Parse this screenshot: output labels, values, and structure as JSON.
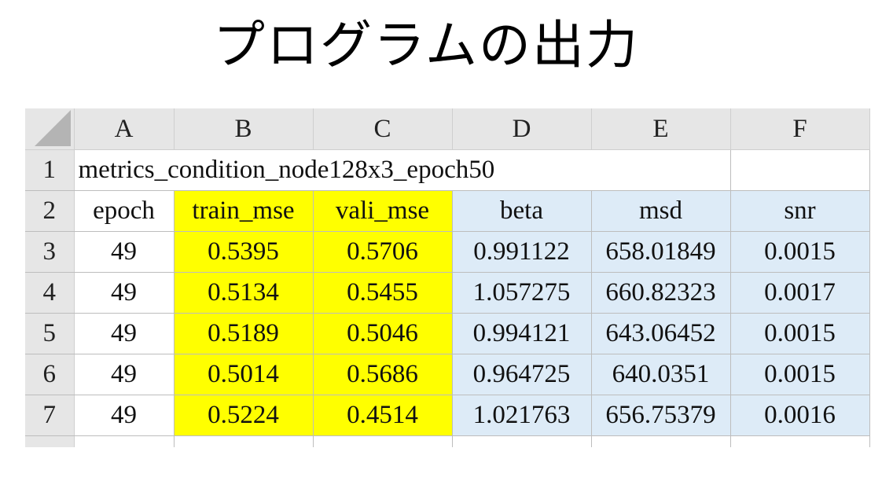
{
  "title": "プログラムの出力",
  "columns": [
    "A",
    "B",
    "C",
    "D",
    "E",
    "F"
  ],
  "row_numbers": [
    "1",
    "2",
    "3",
    "4",
    "5",
    "6",
    "7"
  ],
  "sheet_title": "metrics_condition_node128x3_epoch50",
  "headers": [
    "epoch",
    "train_mse",
    "vali_mse",
    "beta",
    "msd",
    "snr"
  ],
  "rows": [
    [
      "49",
      "0.5395",
      "0.5706",
      "0.991122",
      "658.01849",
      "0.0015"
    ],
    [
      "49",
      "0.5134",
      "0.5455",
      "1.057275",
      "660.82323",
      "0.0017"
    ],
    [
      "49",
      "0.5189",
      "0.5046",
      "0.994121",
      "643.06452",
      "0.0015"
    ],
    [
      "49",
      "0.5014",
      "0.5686",
      "0.964725",
      "640.0351",
      "0.0015"
    ],
    [
      "49",
      "0.5224",
      "0.4514",
      "1.021763",
      "656.75379",
      "0.0016"
    ]
  ],
  "colors": {
    "highlight_yellow": "#ffff00",
    "highlight_blue": "#ddebf7",
    "header_gray": "#e6e6e6"
  }
}
